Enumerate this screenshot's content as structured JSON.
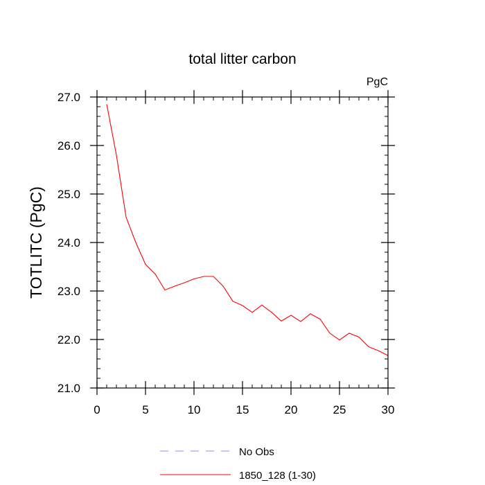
{
  "chart_data": {
    "type": "line",
    "title": "total litter carbon",
    "units_label": "PgC",
    "xlabel": "",
    "ylabel": "TOTLITC  (PgC)",
    "xlim": [
      0,
      30
    ],
    "ylim": [
      21.0,
      27.0
    ],
    "x_ticks": [
      0,
      5,
      10,
      15,
      20,
      25,
      30
    ],
    "x_tick_labels": [
      "0",
      "5",
      "10",
      "15",
      "20",
      "25",
      "30"
    ],
    "y_ticks": [
      21.0,
      22.0,
      23.0,
      24.0,
      25.0,
      26.0,
      27.0
    ],
    "y_tick_labels": [
      "21.0",
      "22.0",
      "23.0",
      "24.0",
      "25.0",
      "26.0",
      "27.0"
    ],
    "series": [
      {
        "name": "1850_128 (1-30)",
        "color": "#ff0000",
        "style": "solid",
        "x": [
          1,
          2,
          3,
          4,
          5,
          6,
          7,
          8,
          9,
          10,
          11,
          12,
          13,
          14,
          15,
          16,
          17,
          18,
          19,
          20,
          21,
          22,
          23,
          24,
          25,
          26,
          27,
          28,
          29,
          30
        ],
        "values": [
          26.85,
          25.8,
          24.52,
          24.0,
          23.55,
          23.35,
          23.02,
          23.1,
          23.17,
          23.25,
          23.3,
          23.3,
          23.1,
          22.79,
          22.7,
          22.56,
          22.71,
          22.56,
          22.38,
          22.5,
          22.37,
          22.53,
          22.42,
          22.13,
          21.99,
          22.13,
          22.05,
          21.85,
          21.77,
          21.67
        ]
      }
    ],
    "legend": [
      {
        "label": "No Obs",
        "color": "#8888ff",
        "style": "dashed"
      },
      {
        "label": "1850_128 (1-30)",
        "color": "#ff0000",
        "style": "solid"
      }
    ],
    "legend_position": "bottom"
  }
}
